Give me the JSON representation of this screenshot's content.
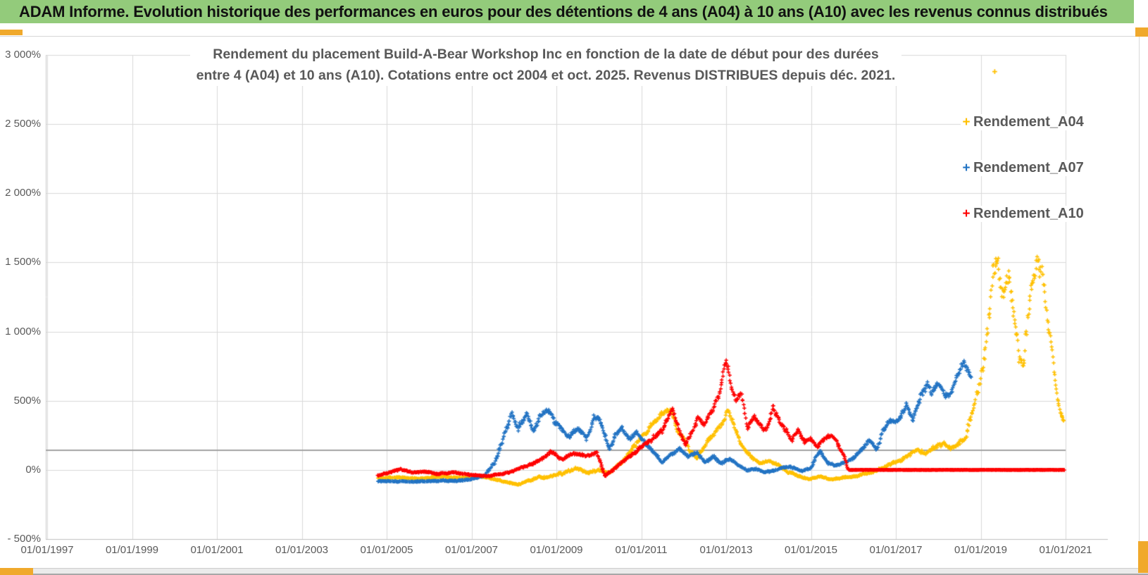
{
  "header": {
    "title": "ADAM Informe. Evolution historique des performances en euros pour des détentions de 4 ans (A04) à 10 ans (A10) avec les revenus connus distribués"
  },
  "colors": {
    "header_green": "#93cb7b",
    "frame_orange": "#f0a92c",
    "series_a04": "#FFC000",
    "series_a07": "#2273C3",
    "series_a10": "#FE0000",
    "axis_text": "#595959"
  },
  "chart_data": {
    "type": "scatter",
    "title": "Rendement du placement Build-A-Bear Workshop Inc en fonction de la date de début pour des durées entre 4 (A04) et 10 ans (A10). Cotations entre oct 2004 et oct. 2025. Revenus DISTRIBUES depuis déc. 2021.",
    "title_lines": [
      "Rendement du placement Build-A-Bear Workshop Inc en fonction de la date de début pour des durées",
      "entre 4 (A04) et 10 ans (A10). Cotations entre oct 2004 et oct. 2025. Revenus DISTRIBUES depuis déc. 2021."
    ],
    "y_axis": {
      "unit": "%",
      "min": -500,
      "max": 3000,
      "major": 500,
      "values": [
        3000,
        2500,
        2000,
        1500,
        1000,
        500,
        0,
        -500
      ],
      "labels": [
        "3 000%",
        "2 500%",
        "2 000%",
        "1 500%",
        "1 000%",
        "500%",
        "0%",
        "- 500%"
      ]
    },
    "x_axis": {
      "start_year": 1997,
      "end_year": 2021,
      "label_step_years": 2,
      "labels": [
        "01/01/1997",
        "01/01/1999",
        "01/01/2001",
        "01/01/2003",
        "01/01/2005",
        "01/01/2007",
        "01/01/2009",
        "01/01/2011",
        "01/01/2013",
        "01/01/2015",
        "01/01/2017",
        "01/01/2019",
        "01/01/2021"
      ]
    },
    "grid": true,
    "legend_position": "right",
    "annotations": {
      "horizontal_line_pct": 140
    },
    "series_note": "anchors are [start_date_as_decimal_year, rendement_pct, local_spread_pct] tracing the visible point cloud; values read off the 500% gridlines",
    "series": [
      {
        "name": "Rendement_A04",
        "color": "#FFC000",
        "marker": "+",
        "outliers": [
          [
            2019.33,
            2880
          ]
        ],
        "anchors": [
          [
            2004.79,
            -60,
            8
          ],
          [
            2005.3,
            -55,
            8
          ],
          [
            2005.8,
            -62,
            7
          ],
          [
            2006.3,
            -50,
            8
          ],
          [
            2006.8,
            -58,
            8
          ],
          [
            2007.3,
            -52,
            8
          ],
          [
            2007.6,
            -70,
            9
          ],
          [
            2007.9,
            -95,
            8
          ],
          [
            2008.1,
            -105,
            7
          ],
          [
            2008.35,
            -75,
            12
          ],
          [
            2008.6,
            -55,
            12
          ],
          [
            2008.9,
            -40,
            14
          ],
          [
            2009.2,
            -15,
            16
          ],
          [
            2009.5,
            10,
            16
          ],
          [
            2009.75,
            -20,
            13
          ],
          [
            2010.0,
            -5,
            14
          ],
          [
            2010.25,
            -20,
            12
          ],
          [
            2010.55,
            60,
            18
          ],
          [
            2010.8,
            160,
            24
          ],
          [
            2011.05,
            260,
            28
          ],
          [
            2011.3,
            340,
            30
          ],
          [
            2011.55,
            420,
            32
          ],
          [
            2011.7,
            430,
            32
          ],
          [
            2011.85,
            300,
            28
          ],
          [
            2012.0,
            220,
            26
          ],
          [
            2012.15,
            140,
            22
          ],
          [
            2012.3,
            95,
            20
          ],
          [
            2012.45,
            150,
            24
          ],
          [
            2012.6,
            220,
            26
          ],
          [
            2012.75,
            280,
            28
          ],
          [
            2012.9,
            340,
            30
          ],
          [
            2013.05,
            430,
            32
          ],
          [
            2013.2,
            310,
            28
          ],
          [
            2013.35,
            190,
            24
          ],
          [
            2013.5,
            120,
            20
          ],
          [
            2013.65,
            75,
            16
          ],
          [
            2013.8,
            45,
            14
          ],
          [
            2014.0,
            70,
            14
          ],
          [
            2014.2,
            40,
            12
          ],
          [
            2014.45,
            -15,
            10
          ],
          [
            2014.7,
            -45,
            9
          ],
          [
            2014.95,
            -65,
            8
          ],
          [
            2015.2,
            -45,
            8
          ],
          [
            2015.45,
            -70,
            7
          ],
          [
            2015.7,
            -60,
            7
          ],
          [
            2015.95,
            -50,
            8
          ],
          [
            2016.2,
            -30,
            9
          ],
          [
            2016.5,
            -10,
            11
          ],
          [
            2016.8,
            35,
            13
          ],
          [
            2017.05,
            60,
            15
          ],
          [
            2017.3,
            105,
            20
          ],
          [
            2017.5,
            145,
            22
          ],
          [
            2017.7,
            120,
            20
          ],
          [
            2017.9,
            165,
            24
          ],
          [
            2018.1,
            185,
            26
          ],
          [
            2018.3,
            150,
            24
          ],
          [
            2018.5,
            200,
            30
          ],
          [
            2018.65,
            240,
            45
          ],
          [
            2018.8,
            430,
            70
          ],
          [
            2018.95,
            580,
            80
          ],
          [
            2019.1,
            850,
            110
          ],
          [
            2019.25,
            1280,
            150
          ],
          [
            2019.4,
            1500,
            150
          ],
          [
            2019.55,
            1330,
            160
          ],
          [
            2019.65,
            1470,
            140
          ],
          [
            2019.78,
            1150,
            130
          ],
          [
            2019.9,
            820,
            100
          ],
          [
            2020.0,
            780,
            95
          ],
          [
            2020.1,
            1050,
            120
          ],
          [
            2020.22,
            1350,
            140
          ],
          [
            2020.33,
            1520,
            120
          ],
          [
            2020.45,
            1400,
            115
          ],
          [
            2020.55,
            1150,
            100
          ],
          [
            2020.65,
            900,
            65
          ],
          [
            2020.75,
            640,
            45
          ],
          [
            2020.85,
            440,
            32
          ],
          [
            2020.98,
            330,
            26
          ]
        ]
      },
      {
        "name": "Rendement_A07",
        "color": "#2273C3",
        "marker": "+",
        "outliers": [],
        "anchors": [
          [
            2004.79,
            -80,
            6
          ],
          [
            2005.5,
            -85,
            5
          ],
          [
            2006.2,
            -80,
            6
          ],
          [
            2006.9,
            -75,
            8
          ],
          [
            2007.3,
            -40,
            12
          ],
          [
            2007.55,
            60,
            25
          ],
          [
            2007.75,
            230,
            35
          ],
          [
            2007.95,
            400,
            40
          ],
          [
            2008.1,
            300,
            40
          ],
          [
            2008.3,
            420,
            35
          ],
          [
            2008.45,
            280,
            35
          ],
          [
            2008.6,
            380,
            35
          ],
          [
            2008.8,
            445,
            35
          ],
          [
            2008.95,
            360,
            35
          ],
          [
            2009.1,
            300,
            30
          ],
          [
            2009.3,
            240,
            30
          ],
          [
            2009.5,
            300,
            30
          ],
          [
            2009.7,
            230,
            28
          ],
          [
            2009.9,
            390,
            32
          ],
          [
            2010.0,
            370,
            30
          ],
          [
            2010.25,
            150,
            25
          ],
          [
            2010.4,
            260,
            28
          ],
          [
            2010.55,
            310,
            28
          ],
          [
            2010.7,
            230,
            25
          ],
          [
            2010.9,
            280,
            26
          ],
          [
            2011.1,
            190,
            24
          ],
          [
            2011.3,
            120,
            20
          ],
          [
            2011.5,
            60,
            16
          ],
          [
            2011.7,
            110,
            20
          ],
          [
            2011.9,
            150,
            20
          ],
          [
            2012.1,
            95,
            18
          ],
          [
            2012.3,
            125,
            18
          ],
          [
            2012.5,
            60,
            15
          ],
          [
            2012.7,
            95,
            15
          ],
          [
            2012.9,
            55,
            15
          ],
          [
            2013.1,
            80,
            15
          ],
          [
            2013.3,
            30,
            12
          ],
          [
            2013.5,
            -10,
            10
          ],
          [
            2013.7,
            10,
            10
          ],
          [
            2013.9,
            -20,
            10
          ],
          [
            2014.2,
            5,
            10
          ],
          [
            2014.5,
            25,
            10
          ],
          [
            2014.8,
            -10,
            8
          ],
          [
            2015.0,
            15,
            10
          ],
          [
            2015.2,
            140,
            20
          ],
          [
            2015.4,
            60,
            15
          ],
          [
            2015.6,
            35,
            12
          ],
          [
            2015.8,
            55,
            12
          ],
          [
            2016.0,
            85,
            15
          ],
          [
            2016.2,
            160,
            20
          ],
          [
            2016.4,
            220,
            25
          ],
          [
            2016.55,
            150,
            20
          ],
          [
            2016.7,
            290,
            25
          ],
          [
            2016.9,
            370,
            30
          ],
          [
            2017.05,
            340,
            30
          ],
          [
            2017.25,
            470,
            30
          ],
          [
            2017.4,
            380,
            30
          ],
          [
            2017.6,
            540,
            35
          ],
          [
            2017.75,
            620,
            35
          ],
          [
            2017.85,
            560,
            30
          ],
          [
            2018.0,
            640,
            35
          ],
          [
            2018.15,
            540,
            35
          ],
          [
            2018.3,
            560,
            35
          ],
          [
            2018.45,
            700,
            40
          ],
          [
            2018.6,
            770,
            35
          ],
          [
            2018.7,
            720,
            35
          ],
          [
            2018.79,
            650,
            30
          ]
        ]
      },
      {
        "name": "Rendement_A10",
        "color": "#FE0000",
        "marker": "+",
        "outliers": [],
        "flat_zero_from": 2015.9,
        "flat_zero_to": 2020.98,
        "anchors": [
          [
            2004.79,
            -40,
            8
          ],
          [
            2005.1,
            -15,
            10
          ],
          [
            2005.3,
            5,
            10
          ],
          [
            2005.6,
            -20,
            8
          ],
          [
            2005.9,
            -10,
            8
          ],
          [
            2006.2,
            -30,
            7
          ],
          [
            2006.6,
            -20,
            7
          ],
          [
            2007.0,
            -35,
            6
          ],
          [
            2007.4,
            -45,
            6
          ],
          [
            2007.6,
            -35,
            7
          ],
          [
            2007.9,
            -20,
            9
          ],
          [
            2008.2,
            20,
            12
          ],
          [
            2008.5,
            50,
            14
          ],
          [
            2008.87,
            130,
            16
          ],
          [
            2009.1,
            80,
            14
          ],
          [
            2009.4,
            120,
            15
          ],
          [
            2009.7,
            100,
            15
          ],
          [
            2009.95,
            130,
            15
          ],
          [
            2010.15,
            -45,
            12
          ],
          [
            2010.4,
            20,
            14
          ],
          [
            2010.7,
            90,
            18
          ],
          [
            2011.0,
            170,
            22
          ],
          [
            2011.3,
            240,
            25
          ],
          [
            2011.5,
            290,
            28
          ],
          [
            2011.74,
            445,
            30
          ],
          [
            2011.9,
            280,
            28
          ],
          [
            2012.04,
            180,
            25
          ],
          [
            2012.2,
            280,
            28
          ],
          [
            2012.35,
            380,
            30
          ],
          [
            2012.5,
            330,
            30
          ],
          [
            2012.65,
            420,
            32
          ],
          [
            2012.8,
            520,
            35
          ],
          [
            2013.0,
            800,
            38
          ],
          [
            2013.12,
            600,
            38
          ],
          [
            2013.25,
            500,
            35
          ],
          [
            2013.35,
            570,
            32
          ],
          [
            2013.5,
            300,
            30
          ],
          [
            2013.65,
            380,
            30
          ],
          [
            2013.8,
            330,
            28
          ],
          [
            2013.95,
            280,
            26
          ],
          [
            2014.1,
            450,
            30
          ],
          [
            2014.25,
            360,
            28
          ],
          [
            2014.4,
            300,
            26
          ],
          [
            2014.55,
            220,
            24
          ],
          [
            2014.7,
            280,
            24
          ],
          [
            2014.85,
            200,
            22
          ],
          [
            2015.0,
            230,
            22
          ],
          [
            2015.15,
            170,
            20
          ],
          [
            2015.3,
            220,
            20
          ],
          [
            2015.5,
            250,
            20
          ],
          [
            2015.65,
            180,
            18
          ],
          [
            2015.8,
            80,
            15
          ],
          [
            2015.87,
            10,
            6
          ],
          [
            2015.9,
            0,
            1.5
          ],
          [
            2020.98,
            0,
            1.5
          ]
        ]
      }
    ]
  }
}
